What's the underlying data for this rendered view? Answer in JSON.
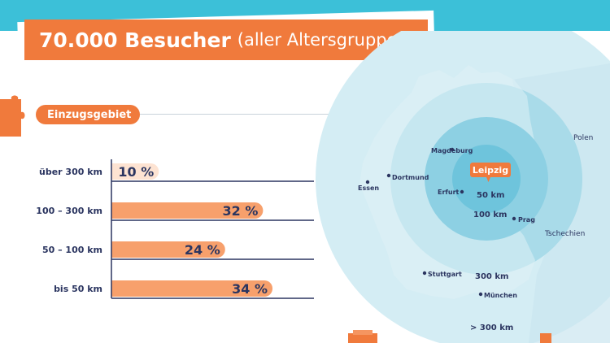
{
  "title": {
    "bold": "70.000 Besucher",
    "light": "(aller Altersgruppen)"
  },
  "section_label": "Einzugsgebiet",
  "chart_data": {
    "type": "bar",
    "orientation": "horizontal",
    "categories": [
      "über 300 km",
      "100 – 300 km",
      "50 – 100 km",
      "bis 50 km"
    ],
    "values": [
      10,
      32,
      24,
      34
    ],
    "value_labels": [
      "10 %",
      "32 %",
      "24 %",
      "34 %"
    ],
    "unit": "%",
    "xlim": [
      0,
      40
    ],
    "colors": {
      "highlight": "#f7a06c",
      "light": "#fde3d2",
      "text": "#2b3560",
      "axis": "#2b3560"
    },
    "light_categories": [
      "über 300 km"
    ],
    "grid": false
  },
  "map": {
    "countries": {
      "poland": "Polen",
      "czechia": "Tschechien"
    },
    "center_city": "Leipzig",
    "cities": [
      "Magdeburg",
      "Dortmund",
      "Essen",
      "Erfurt",
      "Prag",
      "Stuttgart",
      "München"
    ],
    "rings": [
      "50 km",
      "100 km",
      "300 km",
      "> 300 km"
    ],
    "colors": {
      "ring_outer": "#d4edf4",
      "ring_300": "#a9dbe9",
      "ring_100": "#8dd0e3",
      "ring_50": "#6ec4dc",
      "country": "#cbe6ef",
      "leipzig_badge": "#f07a3c",
      "label": "#2b3560"
    }
  }
}
